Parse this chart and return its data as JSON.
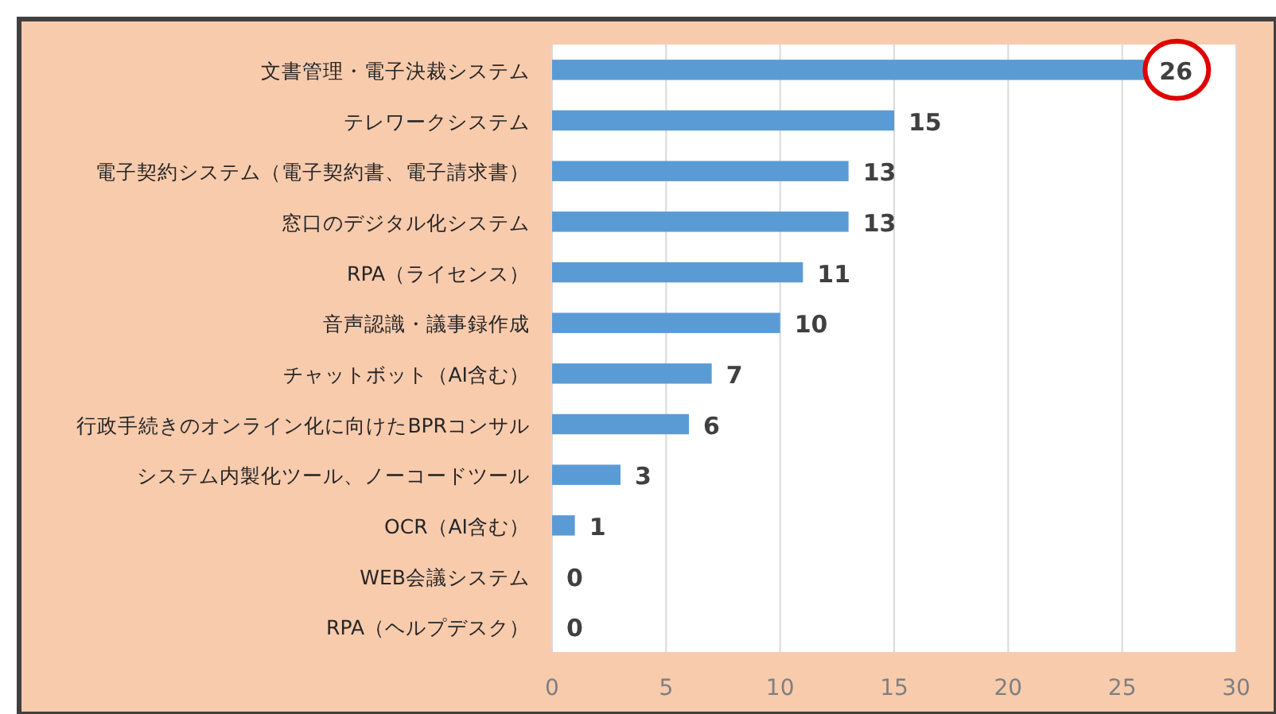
{
  "chart_data": {
    "type": "bar",
    "orientation": "horizontal",
    "categories": [
      "文書管理・電子決裁システム",
      "テレワークシステム",
      "電子契約システム（電子契約書、電子請求書）",
      "窓口のデジタル化システム",
      "RPA（ライセンス）",
      "音声認識・議事録作成",
      "チャットボット（AI含む）",
      "行政手続きのオンライン化に向けたBPRコンサル",
      "システム内製化ツール、ノーコードツール",
      "OCR（AI含む）",
      "WEB会議システム",
      "RPA（ヘルプデスク）"
    ],
    "values": [
      26,
      15,
      13,
      13,
      11,
      10,
      7,
      6,
      3,
      1,
      0,
      0
    ],
    "color": "#5b9bd5",
    "xlim": [
      0,
      30
    ],
    "xticks": [
      0,
      5,
      10,
      15,
      20,
      25,
      30
    ],
    "grid": "x",
    "data_labels": true
  }
}
